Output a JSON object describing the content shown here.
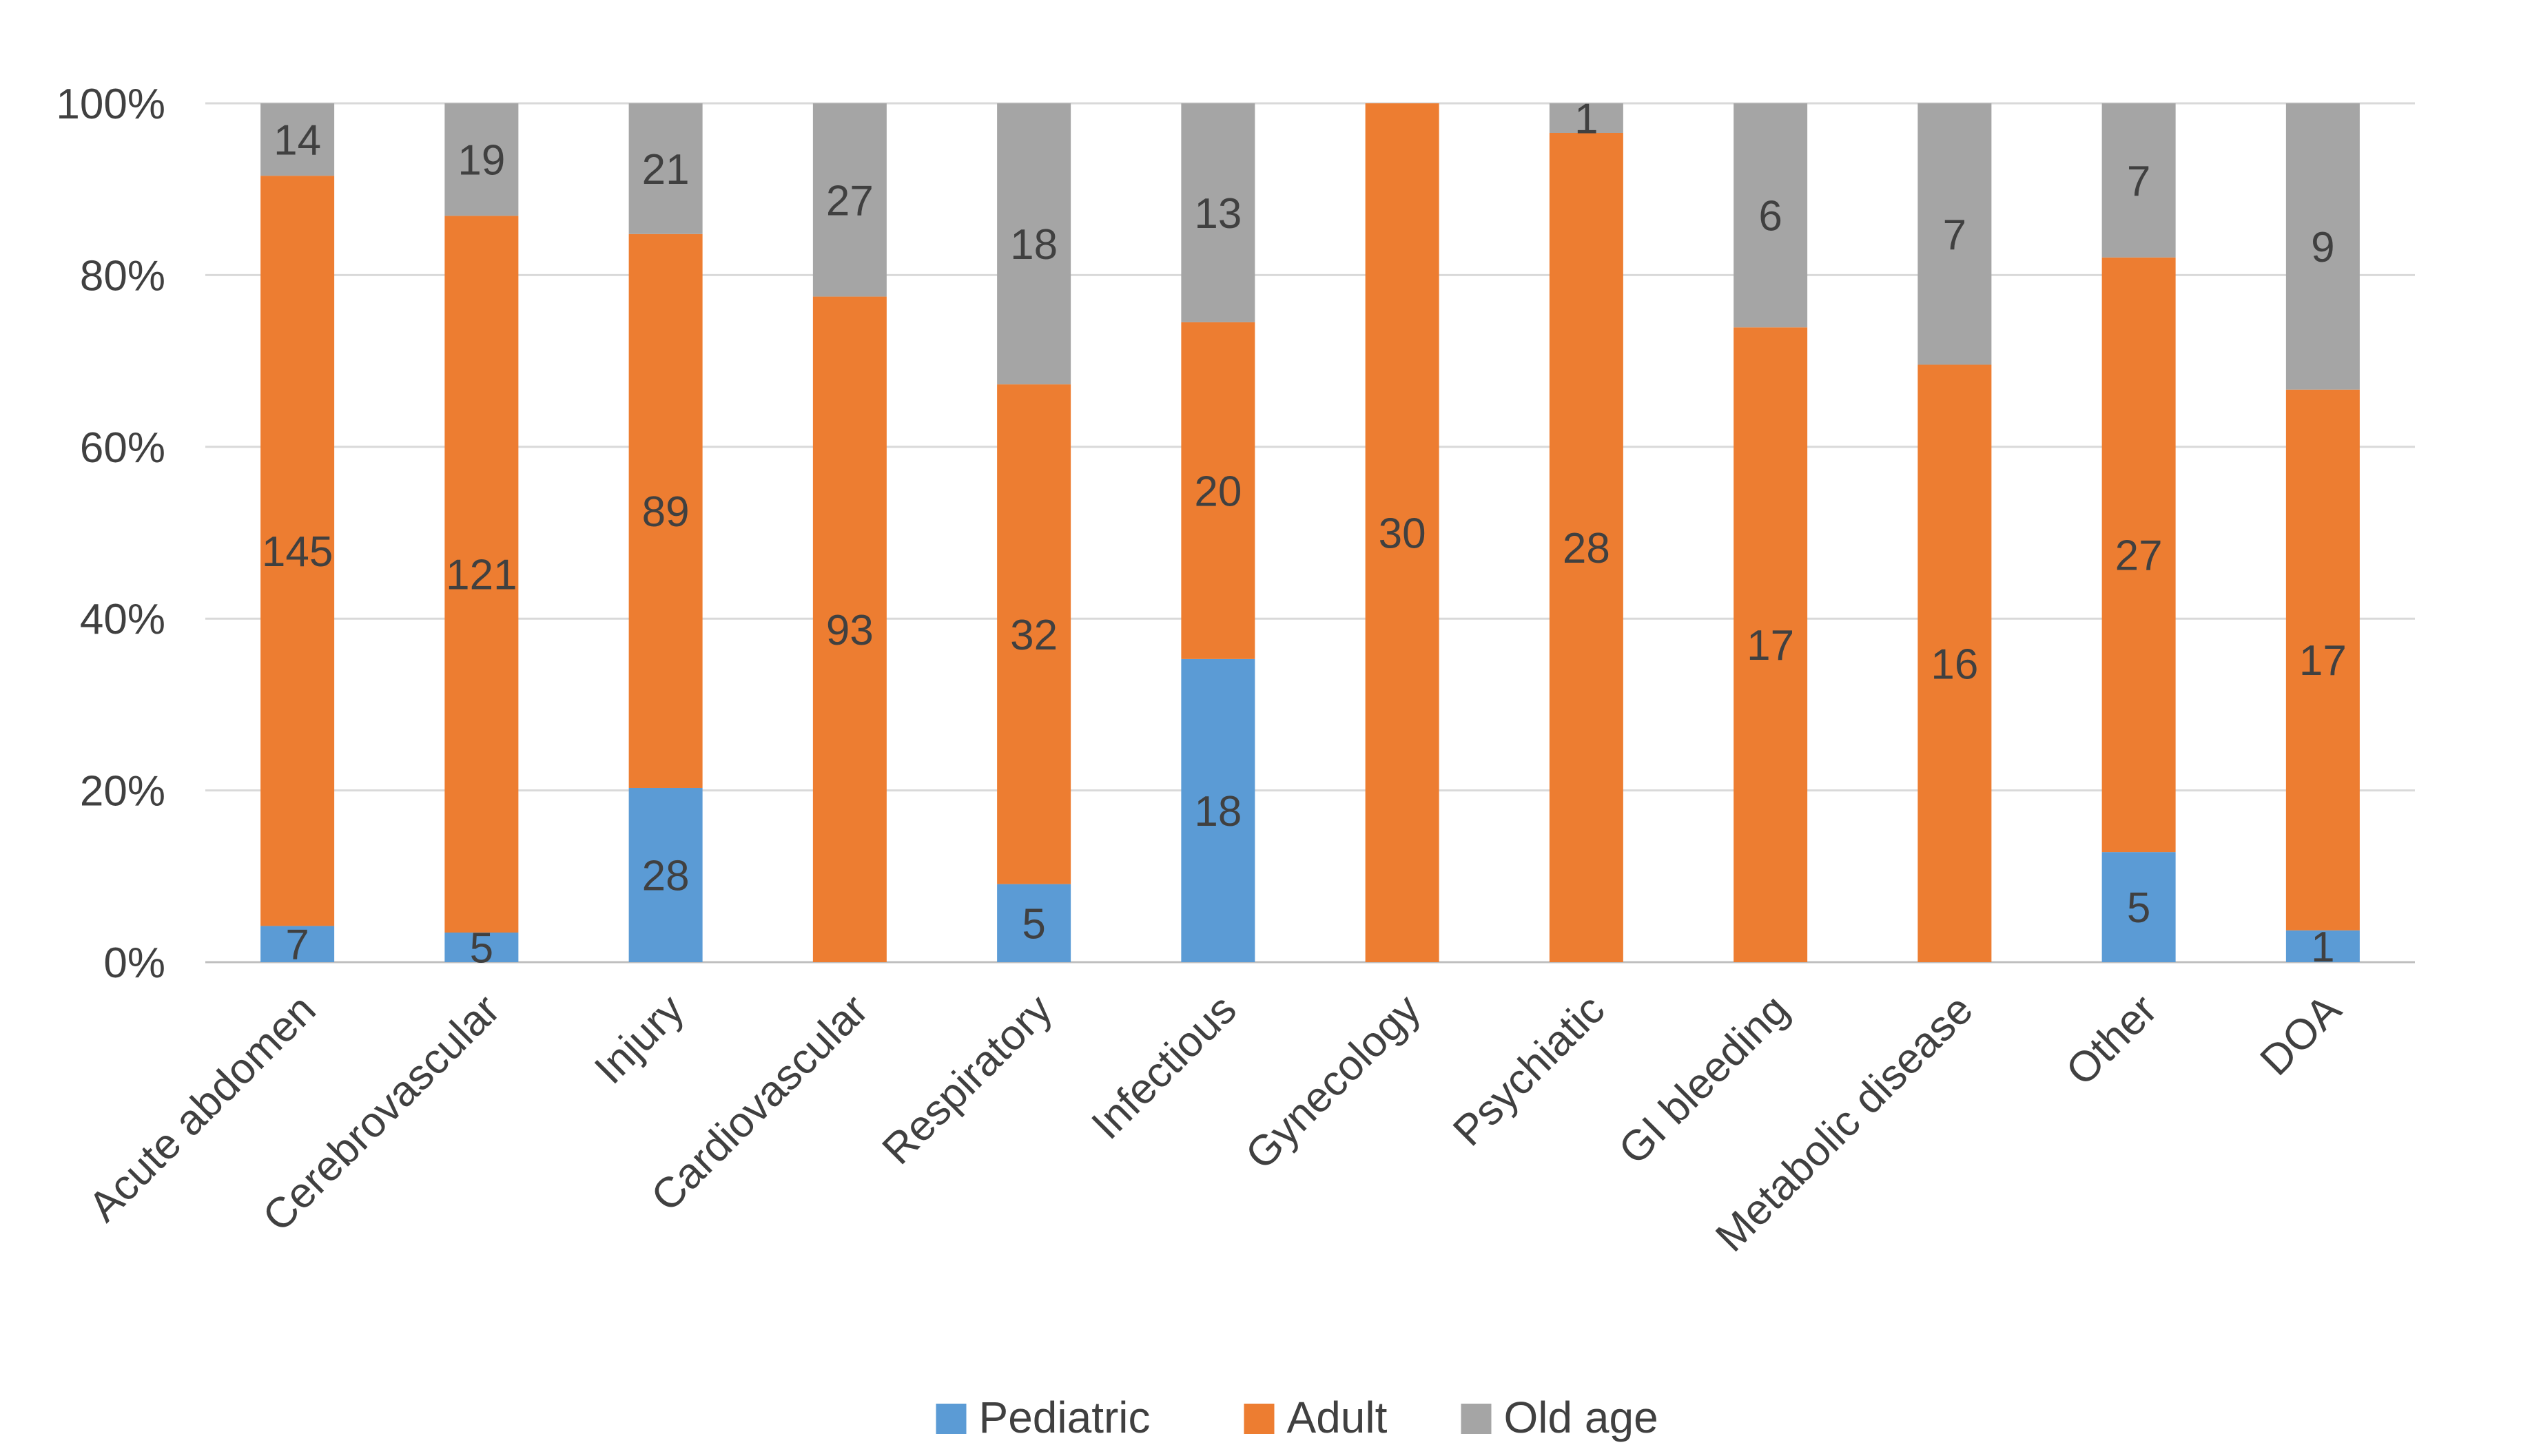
{
  "chart_data": {
    "type": "bar",
    "stacked": "percent",
    "categories": [
      "Acute abdomen",
      "Cerebrovascular",
      "Injury",
      "Cardiovascular",
      "Respiratory",
      "Infectious",
      "Gynecology",
      "Psychiatic",
      "GI bleeding",
      "Metabolic disease",
      "Other",
      "DOA"
    ],
    "series": [
      {
        "name": "Pediatric",
        "color": "#5b9bd5",
        "values": [
          7,
          5,
          28,
          0,
          5,
          18,
          0,
          0,
          0,
          0,
          5,
          1
        ]
      },
      {
        "name": "Adult",
        "color": "#ed7d31",
        "values": [
          145,
          121,
          89,
          93,
          32,
          20,
          30,
          28,
          17,
          16,
          27,
          17
        ]
      },
      {
        "name": "Old age",
        "color": "#a5a5a5",
        "values": [
          14,
          19,
          21,
          27,
          18,
          13,
          0,
          1,
          6,
          7,
          7,
          9
        ]
      }
    ],
    "y_ticks": [
      "0%",
      "20%",
      "40%",
      "60%",
      "80%",
      "100%"
    ],
    "ylim": [
      0,
      100
    ],
    "grid": true,
    "legend_position": "bottom"
  }
}
